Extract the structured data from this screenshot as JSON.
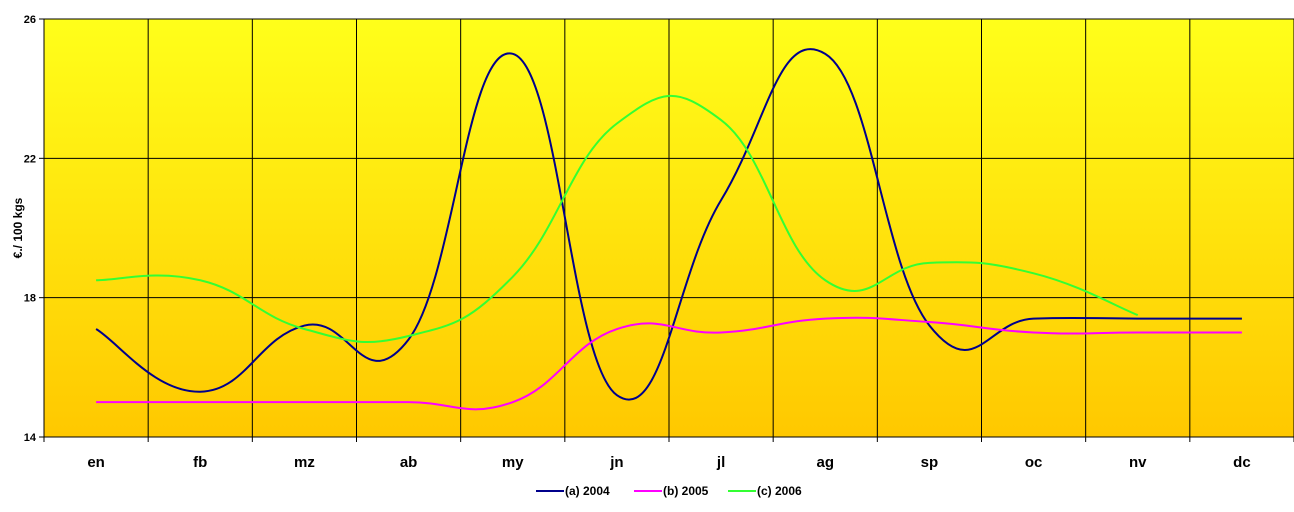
{
  "chart_data": {
    "type": "line",
    "categories": [
      "en",
      "fb",
      "mz",
      "ab",
      "my",
      "jn",
      "jl",
      "ag",
      "sp",
      "oc",
      "nv",
      "dc"
    ],
    "ylabel": "€./ 100 kgs",
    "ylim": [
      14,
      26
    ],
    "yticks": [
      14,
      18,
      22,
      26
    ],
    "grid": true,
    "legend": "bottom",
    "background_gradient": [
      "#FFFF1A",
      "#FFC800"
    ],
    "series": [
      {
        "name": "(a) 2004",
        "color": "#00008B",
        "values": [
          17.1,
          15.3,
          17.2,
          16.8,
          25.0,
          15.2,
          20.8,
          25.0,
          17.2,
          17.4,
          17.4,
          17.4
        ]
      },
      {
        "name": "(b) 2005",
        "color": "#FF00FF",
        "values": [
          15.0,
          15.0,
          15.0,
          15.0,
          15.0,
          17.1,
          17.0,
          17.4,
          17.3,
          17.0,
          17.0,
          17.0
        ]
      },
      {
        "name": "(c) 2006",
        "color": "#33FF33",
        "values": [
          18.5,
          18.5,
          17.1,
          16.9,
          18.6,
          23.0,
          23.1,
          18.5,
          19.0,
          18.7,
          17.5,
          null
        ]
      }
    ]
  }
}
